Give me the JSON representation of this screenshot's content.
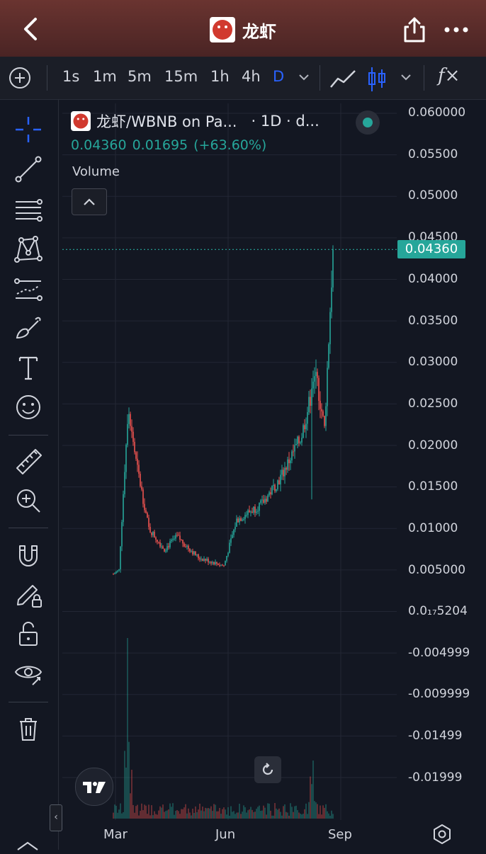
{
  "header": {
    "title": "龙虾",
    "back_icon": "chevron-left-icon",
    "share_icon": "share-icon",
    "more_icon": "more-horizontal-icon",
    "background": "#5a2c2a"
  },
  "toolbar": {
    "intervals": [
      "1s",
      "1m",
      "5m",
      "15m",
      "1h",
      "4h",
      "D"
    ],
    "active_interval": "D",
    "add_icon": "plus-circle-icon",
    "chart_type_line_icon": "line-chart-icon",
    "chart_type_candle_icon": "candlestick-icon",
    "indicators_label": "f×",
    "accent": "#2962ff"
  },
  "left_tools": [
    "crosshair-icon",
    "trend-line-icon",
    "fib-lines-icon",
    "pattern-icon",
    "forecast-icon",
    "brush-icon",
    "text-icon",
    "emoji-icon",
    "ruler-icon",
    "zoom-in-icon",
    "magnet-icon",
    "lock-drawing-icon",
    "unlock-icon",
    "visibility-icon",
    "trash-icon"
  ],
  "legend": {
    "symbol": "龙虾/WBNB on Pa...",
    "interval_suffix": "· 1D · d...",
    "price": "0.04360",
    "change": "0.01695",
    "change_pct": "(+63.60%)",
    "volume_label": "Volume",
    "up_color": "#26a69a",
    "down_color": "#ef5350"
  },
  "price_axis": {
    "labels": [
      "0.060000",
      "0.05500",
      "0.05000",
      "0.04500",
      "0.04000",
      "0.03500",
      "0.03000",
      "0.02500",
      "0.02000",
      "0.01500",
      "0.01000",
      "0.005000",
      "0.0₁₇5204",
      "-0.004999",
      "-0.009999",
      "-0.01499",
      "-0.01999"
    ],
    "last_price_label": "0.04360"
  },
  "time_axis": {
    "labels": [
      "Mar",
      "Jun",
      "Sep"
    ]
  },
  "chart_data": {
    "type": "candlestick",
    "title": "龙虾/WBNB",
    "interval": "1D",
    "ylim": [
      -0.022,
      0.0615
    ],
    "last_price": 0.0436,
    "x_labels": [
      "Mar",
      "Jun",
      "Sep"
    ],
    "approx_close_path": [
      {
        "x": "late Feb",
        "y": 0.0045
      },
      {
        "x": "early Mar",
        "y": 0.005
      },
      {
        "x": "early Mar",
        "y": 0.025
      },
      {
        "x": "mid Mar",
        "y": 0.018
      },
      {
        "x": "late Mar",
        "y": 0.01
      },
      {
        "x": "Apr",
        "y": 0.0075
      },
      {
        "x": "late Apr",
        "y": 0.009
      },
      {
        "x": "May",
        "y": 0.0065
      },
      {
        "x": "late May",
        "y": 0.0055
      },
      {
        "x": "early Jun",
        "y": 0.011
      },
      {
        "x": "Jul",
        "y": 0.013
      },
      {
        "x": "mid Jul",
        "y": 0.016
      },
      {
        "x": "early Aug",
        "y": 0.021
      },
      {
        "x": "mid Aug",
        "y": 0.0285
      },
      {
        "x": "late Aug",
        "y": 0.022
      },
      {
        "x": "end Aug",
        "y": 0.0436
      }
    ],
    "peaks": [
      {
        "x": "early Mar",
        "y": 0.0267
      },
      {
        "x": "mid Aug",
        "y": 0.0337
      },
      {
        "x": "end Aug",
        "y": 0.0441
      }
    ]
  }
}
